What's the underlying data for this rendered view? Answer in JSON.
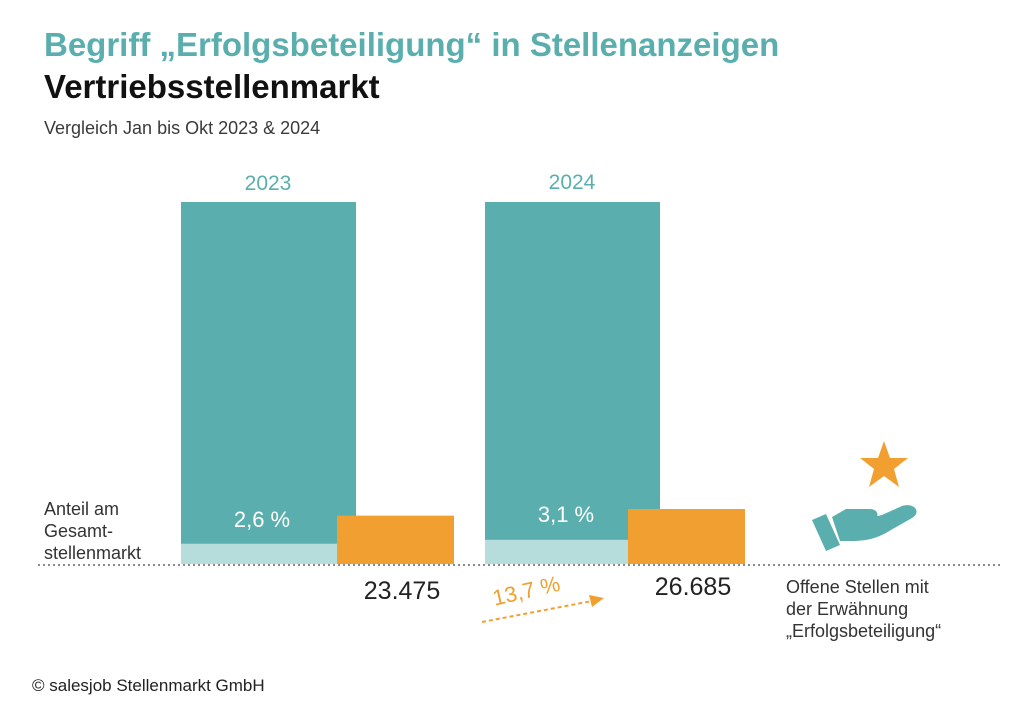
{
  "title": "Begriff „Erfolgsbeteiligung“ in Stellenanzeigen",
  "title_line2": "Vertriebsstellenmarkt",
  "subtitle": "Vergleich Jan bis Okt 2023 & 2024",
  "footer": "© salesjob Stellenmarkt GmbH",
  "colors": {
    "total_bar": "#5aafae",
    "share_segment": "#b6dcdb",
    "offers_bar": "#f29f31",
    "accent_text": "#5aafae",
    "growth": "#f0a030"
  },
  "chart_data": {
    "type": "bar",
    "categories": [
      "2023",
      "2024"
    ],
    "series": [
      {
        "values": [
          100,
          100
        ]
      },
      {
        "name": "Anteil am Gesamtstellenmarkt",
        "values": [
          2.6,
          3.1
        ],
        "labels": [
          "2,6 %",
          "3,1 %"
        ]
      },
      {
        "name": "Offene Stellen mit der Erwähnung „Erfolgsbeteiligung“",
        "values": [
          23475,
          26685
        ],
        "labels": [
          "23.475",
          "26.685"
        ]
      }
    ],
    "left_legend_lines": [
      "Anteil am",
      "Gesamt-",
      "stellenmarkt"
    ],
    "right_legend_lines": [
      "Offene Stellen mit",
      "der Erwähnung",
      "„Erfolgsbeteiligung“"
    ],
    "growth": {
      "value": 13.7,
      "label": "13,7 %"
    },
    "legend": "right",
    "grid": false
  }
}
